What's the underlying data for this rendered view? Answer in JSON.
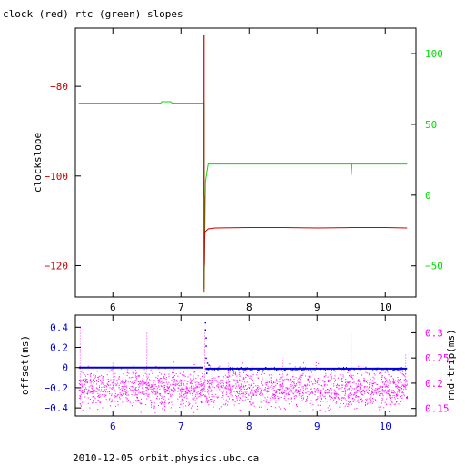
{
  "title": "clock (red) rtc (green) slopes",
  "footer": "2010-12-05  orbit.physics.ubc.ca",
  "colors": {
    "frame": "#000000",
    "clock": "#cc0000",
    "rtc": "#00dd00",
    "offset": "#0000dd",
    "rndtrip": "#ff00ff"
  },
  "chart_data": [
    {
      "type": "line",
      "title": "clock (red) rtc (green) slopes",
      "xlim": [
        5.45,
        10.45
      ],
      "x_ticks": [
        6,
        7,
        8,
        9,
        10
      ],
      "y_left": {
        "label": "clockslope",
        "lim": [
          -127,
          -67
        ],
        "ticks": [
          -120,
          -100,
          -80
        ],
        "color": "#cc0000"
      },
      "y_right": {
        "label": "",
        "lim": [
          -72,
          118
        ],
        "ticks": [
          -50,
          0,
          50,
          100
        ],
        "color": "#00dd00"
      },
      "series": [
        {
          "name": "clock",
          "axis": "left",
          "color": "#cc0000",
          "points": [
            [
              7.34,
              -126
            ],
            [
              7.34,
              -104.5
            ],
            [
              7.345,
              -104.5
            ],
            [
              7.345,
              -120
            ],
            [
              7.35,
              -112.5
            ],
            [
              7.4,
              -111.8
            ],
            [
              7.5,
              -111.6
            ],
            [
              8.0,
              -111.5
            ],
            [
              8.5,
              -111.5
            ],
            [
              9.0,
              -111.6
            ],
            [
              9.5,
              -111.5
            ],
            [
              10.0,
              -111.5
            ],
            [
              10.32,
              -111.6
            ]
          ],
          "spike": [
            7.34,
            -68.5
          ]
        },
        {
          "name": "rtc",
          "axis": "right",
          "color": "#00dd00",
          "points": [
            [
              5.5,
              65
            ],
            [
              6.7,
              65
            ],
            [
              6.72,
              66
            ],
            [
              6.85,
              66
            ],
            [
              6.87,
              65
            ],
            [
              7.34,
              65
            ],
            [
              7.34,
              -66
            ],
            [
              7.36,
              10
            ],
            [
              7.4,
              22
            ],
            [
              7.5,
              22
            ],
            [
              8.0,
              22
            ],
            [
              9.0,
              22
            ],
            [
              9.5,
              22
            ],
            [
              9.5,
              14
            ],
            [
              9.51,
              22
            ],
            [
              10.0,
              22
            ],
            [
              10.32,
              22
            ]
          ]
        }
      ]
    },
    {
      "type": "scatter",
      "xlim": [
        5.45,
        10.45
      ],
      "x_ticks": [
        6,
        7,
        8,
        9,
        10
      ],
      "y_left": {
        "label": "offset(ms)",
        "lim": [
          -0.48,
          0.52
        ],
        "ticks": [
          -0.4,
          -0.2,
          0,
          0.2,
          0.4
        ],
        "color": "#0000dd"
      },
      "y_right": {
        "label": "rnd-trip(ms)",
        "lim": [
          0.135,
          0.335
        ],
        "ticks": [
          0.15,
          0.2,
          0.25,
          0.3
        ],
        "color": "#ff00ff"
      },
      "series": [
        {
          "name": "offset",
          "axis": "left",
          "color": "#0000dd",
          "segments": [
            [
              5.5,
              7.32,
              0.0
            ],
            [
              7.36,
              10.32,
              -0.01
            ]
          ],
          "outliers": [
            [
              7.35,
              0.45
            ],
            [
              7.35,
              0.38
            ],
            [
              7.36,
              0.3
            ],
            [
              7.36,
              0.22
            ],
            [
              7.36,
              0.1
            ],
            [
              7.37,
              -0.05
            ],
            [
              7.38,
              0.05
            ],
            [
              7.4,
              0.03
            ]
          ]
        },
        {
          "name": "rnd-trip",
          "axis": "right",
          "color": "#ff00ff",
          "x_range": [
            5.5,
            10.32
          ],
          "center": 0.19,
          "spread": 0.018,
          "spikes": [
            [
              5.52,
              0.31
            ],
            [
              6.5,
              0.3
            ],
            [
              7.35,
              0.3
            ],
            [
              9.5,
              0.3
            ],
            [
              10.3,
              0.26
            ],
            [
              8.5,
              0.25
            ],
            [
              6.0,
              0.24
            ],
            [
              7.7,
              0.24
            ]
          ]
        }
      ]
    }
  ]
}
